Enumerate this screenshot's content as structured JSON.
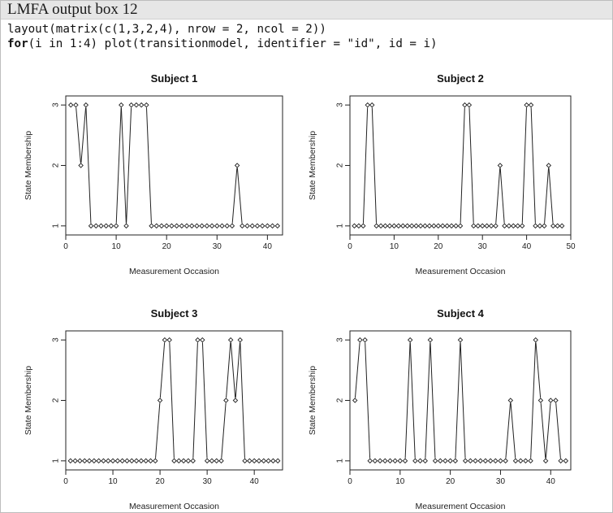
{
  "header": {
    "title": "LMFA output box 12"
  },
  "code": {
    "line1": "layout(matrix(c(1,3,2,4), nrow = 2, ncol = 2))",
    "line2_keyword": "for",
    "line2_rest": "(i in 1:4) plot(transitionmodel, identifier = \"id\", id = i)"
  },
  "chart_data": [
    {
      "type": "line",
      "title": "Subject 1",
      "xlabel": "Measurement Occasion",
      "ylabel": "State Membership",
      "xlim": [
        0,
        43
      ],
      "ylim": [
        0.85,
        3.15
      ],
      "xticks": [
        0,
        10,
        20,
        30,
        40
      ],
      "yticks": [
        1,
        2,
        3
      ],
      "x": [
        1,
        2,
        3,
        4,
        5,
        6,
        7,
        8,
        9,
        10,
        11,
        12,
        13,
        14,
        15,
        16,
        17,
        18,
        19,
        20,
        21,
        22,
        23,
        24,
        25,
        26,
        27,
        28,
        29,
        30,
        31,
        32,
        33,
        34,
        35,
        36,
        37,
        38,
        39,
        40,
        41,
        42
      ],
      "values": [
        3,
        3,
        2,
        3,
        1,
        1,
        1,
        1,
        1,
        1,
        3,
        1,
        3,
        3,
        3,
        3,
        1,
        1,
        1,
        1,
        1,
        1,
        1,
        1,
        1,
        1,
        1,
        1,
        1,
        1,
        1,
        1,
        1,
        2,
        1,
        1,
        1,
        1,
        1,
        1,
        1,
        1
      ]
    },
    {
      "type": "line",
      "title": "Subject 2",
      "xlabel": "Measurement Occasion",
      "ylabel": "State Membership",
      "xlim": [
        0,
        50
      ],
      "ylim": [
        0.85,
        3.15
      ],
      "xticks": [
        0,
        10,
        20,
        30,
        40,
        50
      ],
      "yticks": [
        1,
        2,
        3
      ],
      "x": [
        1,
        2,
        3,
        4,
        5,
        6,
        7,
        8,
        9,
        10,
        11,
        12,
        13,
        14,
        15,
        16,
        17,
        18,
        19,
        20,
        21,
        22,
        23,
        24,
        25,
        26,
        27,
        28,
        29,
        30,
        31,
        32,
        33,
        34,
        35,
        36,
        37,
        38,
        39,
        40,
        41,
        42,
        43,
        44,
        45,
        46,
        47,
        48
      ],
      "values": [
        1,
        1,
        1,
        3,
        3,
        1,
        1,
        1,
        1,
        1,
        1,
        1,
        1,
        1,
        1,
        1,
        1,
        1,
        1,
        1,
        1,
        1,
        1,
        1,
        1,
        3,
        3,
        1,
        1,
        1,
        1,
        1,
        1,
        2,
        1,
        1,
        1,
        1,
        1,
        3,
        3,
        1,
        1,
        1,
        2,
        1,
        1,
        1
      ]
    },
    {
      "type": "line",
      "title": "Subject 3",
      "xlabel": "Measurement Occasion",
      "ylabel": "State Membership",
      "xlim": [
        0,
        46
      ],
      "ylim": [
        0.85,
        3.15
      ],
      "xticks": [
        0,
        10,
        20,
        30,
        40
      ],
      "yticks": [
        1,
        2,
        3
      ],
      "x": [
        1,
        2,
        3,
        4,
        5,
        6,
        7,
        8,
        9,
        10,
        11,
        12,
        13,
        14,
        15,
        16,
        17,
        18,
        19,
        20,
        21,
        22,
        23,
        24,
        25,
        26,
        27,
        28,
        29,
        30,
        31,
        32,
        33,
        34,
        35,
        36,
        37,
        38,
        39,
        40,
        41,
        42,
        43,
        44,
        45
      ],
      "values": [
        1,
        1,
        1,
        1,
        1,
        1,
        1,
        1,
        1,
        1,
        1,
        1,
        1,
        1,
        1,
        1,
        1,
        1,
        1,
        2,
        3,
        3,
        1,
        1,
        1,
        1,
        1,
        3,
        3,
        1,
        1,
        1,
        1,
        2,
        3,
        2,
        3,
        1,
        1,
        1,
        1,
        1,
        1,
        1,
        1
      ]
    },
    {
      "type": "line",
      "title": "Subject 4",
      "xlabel": "Measurement Occasion",
      "ylabel": "State Membership",
      "xlim": [
        0,
        44
      ],
      "ylim": [
        0.85,
        3.15
      ],
      "xticks": [
        0,
        10,
        20,
        30,
        40
      ],
      "yticks": [
        1,
        2,
        3
      ],
      "x": [
        1,
        2,
        3,
        4,
        5,
        6,
        7,
        8,
        9,
        10,
        11,
        12,
        13,
        14,
        15,
        16,
        17,
        18,
        19,
        20,
        21,
        22,
        23,
        24,
        25,
        26,
        27,
        28,
        29,
        30,
        31,
        32,
        33,
        34,
        35,
        36,
        37,
        38,
        39,
        40,
        41,
        42,
        43
      ],
      "values": [
        2,
        3,
        3,
        1,
        1,
        1,
        1,
        1,
        1,
        1,
        1,
        3,
        1,
        1,
        1,
        3,
        1,
        1,
        1,
        1,
        1,
        3,
        1,
        1,
        1,
        1,
        1,
        1,
        1,
        1,
        1,
        2,
        1,
        1,
        1,
        1,
        3,
        2,
        1,
        2,
        2,
        1,
        1
      ]
    }
  ]
}
